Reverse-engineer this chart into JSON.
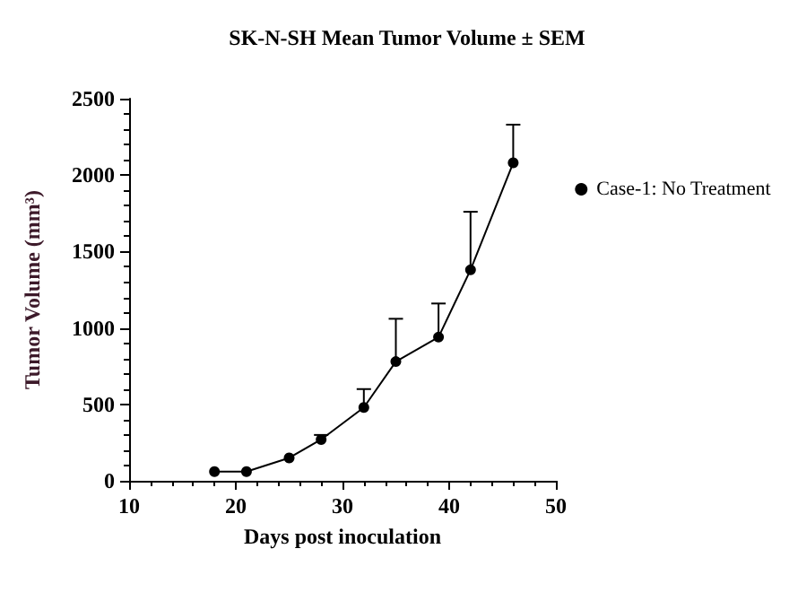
{
  "chart_data": {
    "type": "line",
    "title": "SK-N-SH Mean Tumor Volume ± SEM",
    "xlabel": "Days post inoculation",
    "ylabel": "Tumor Volume (mm³)",
    "x": [
      18,
      21,
      25,
      28,
      32,
      35,
      39,
      42,
      46
    ],
    "series": [
      {
        "name": "Case-1: No Treatment",
        "color": "#000000",
        "values": [
          60,
          60,
          150,
          270,
          480,
          780,
          940,
          1380,
          2080
        ],
        "errors": [
          null,
          null,
          null,
          [
            270,
            300
          ],
          [
            480,
            600
          ],
          [
            780,
            1060
          ],
          [
            940,
            1160
          ],
          [
            1380,
            1760
          ],
          [
            2080,
            2330
          ]
        ]
      }
    ],
    "xlim": [
      10,
      50
    ],
    "xticks": [
      10,
      20,
      30,
      40,
      50
    ],
    "ylim": [
      0,
      2500
    ],
    "yticks": [
      0,
      500,
      1000,
      1500,
      2000,
      2500
    ],
    "grid": false,
    "legend": "right",
    "marker": "circle",
    "line_style": "solid"
  }
}
